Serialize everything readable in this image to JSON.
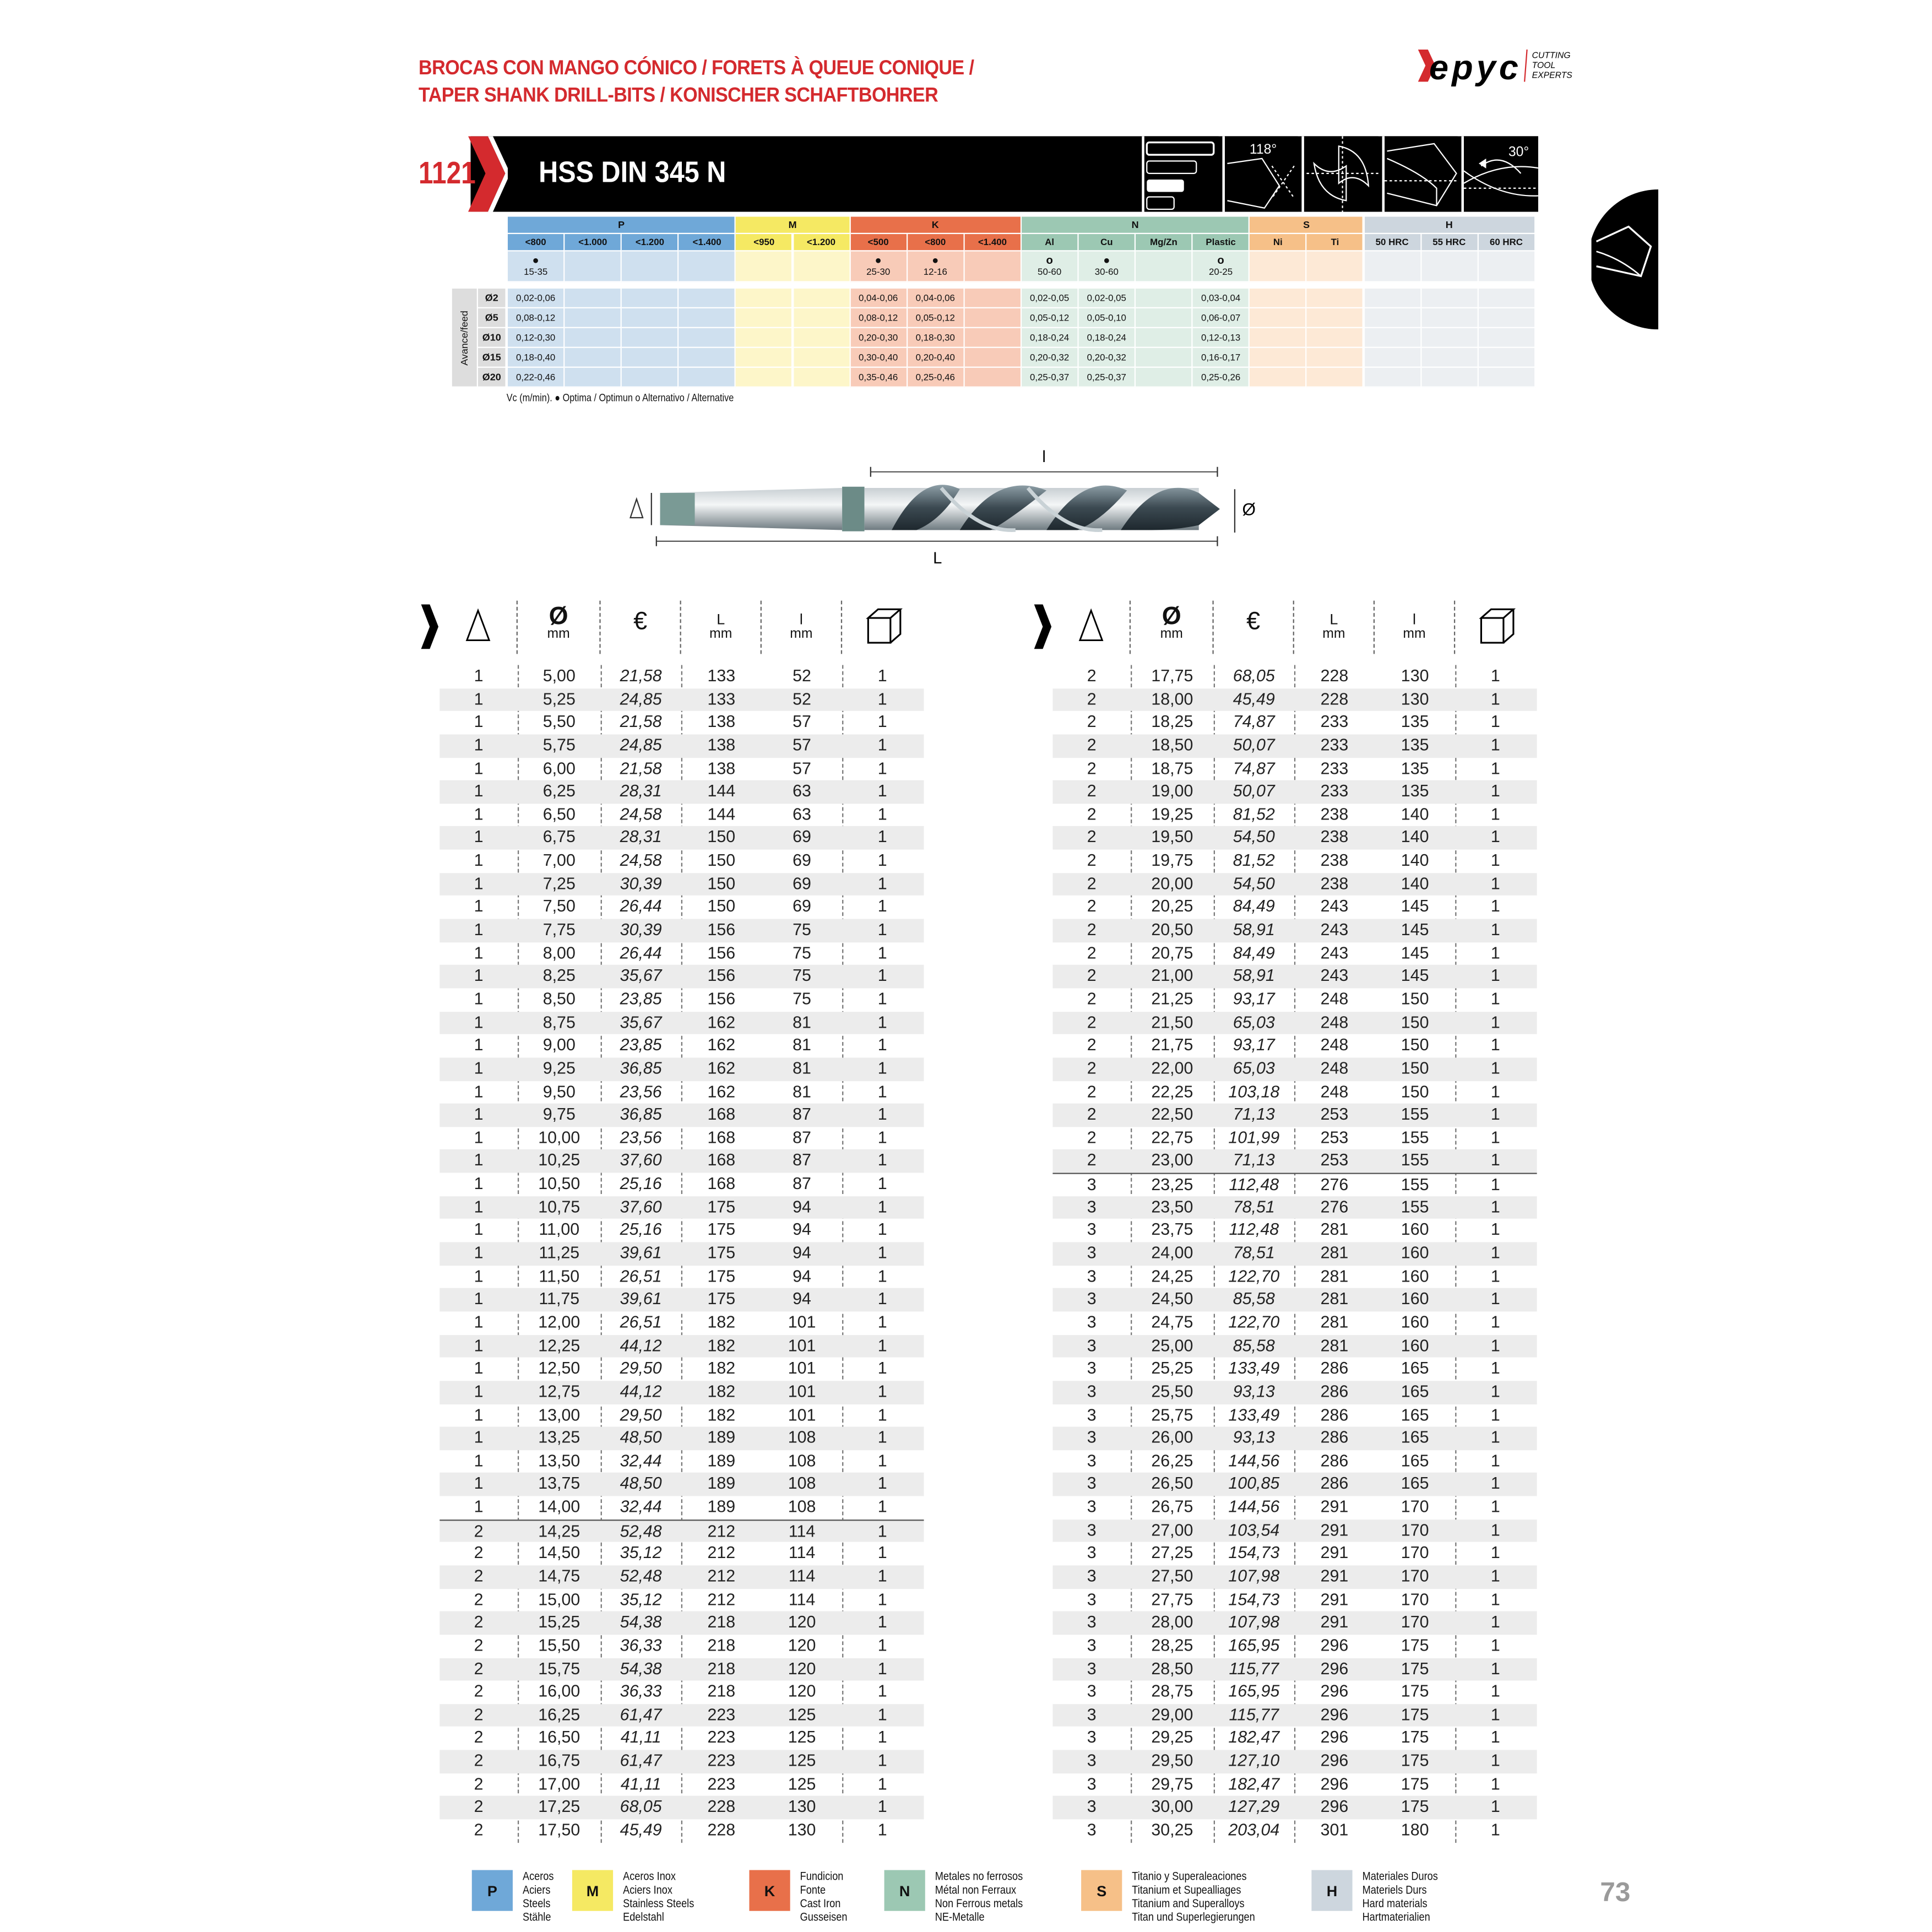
{
  "header": {
    "title_line1": "BROCAS CON MANGO CÓNICO / FORETS À QUEUE CONIQUE /",
    "title_line2": "TAPER SHANK DRILL-BITS / KONISCHER SCHAFTBOHRER",
    "logo_text": "Hepyc",
    "logo_tagline": "CUTTING TOOL EXPERTS",
    "brand_color": "#d42a2e"
  },
  "product": {
    "code": "1121",
    "name": "HSS DIN 345 N",
    "icons": [
      {
        "name": "length-series-icon"
      },
      {
        "name": "point-angle-icon",
        "label": "118°"
      },
      {
        "name": "split-point-icon"
      },
      {
        "name": "cutting-edge-icon"
      },
      {
        "name": "helix-angle-icon",
        "label": "30°"
      }
    ]
  },
  "materials": {
    "feed_label": "Avance/feed",
    "feed_diameters": [
      "Ø2",
      "Ø5",
      "Ø10",
      "Ø15",
      "Ø20"
    ],
    "footnote": "Vc (m/min). ● Optima / Optimun  o Alternativo / Alternative",
    "groups": [
      {
        "code": "P",
        "color": "#6fa8d8",
        "light": "#cfe0ef",
        "columns": [
          {
            "label": "<800",
            "mark": "●",
            "vc": "15-35",
            "feed": [
              "0,02-0,06",
              "0,08-0,12",
              "0,12-0,30",
              "0,18-0,40",
              "0,22-0,46"
            ]
          },
          {
            "label": "<1.000",
            "mark": "",
            "vc": "",
            "feed": [
              "",
              "",
              "",
              "",
              ""
            ]
          },
          {
            "label": "<1.200",
            "mark": "",
            "vc": "",
            "feed": [
              "",
              "",
              "",
              "",
              ""
            ]
          },
          {
            "label": "<1.400",
            "mark": "",
            "vc": "",
            "feed": [
              "",
              "",
              "",
              "",
              ""
            ]
          }
        ]
      },
      {
        "code": "M",
        "color": "#f5e963",
        "light": "#fdf6c9",
        "columns": [
          {
            "label": "<950",
            "mark": "",
            "vc": "",
            "feed": [
              "",
              "",
              "",
              "",
              ""
            ]
          },
          {
            "label": "<1.200",
            "mark": "",
            "vc": "",
            "feed": [
              "",
              "",
              "",
              "",
              ""
            ]
          }
        ]
      },
      {
        "code": "K",
        "color": "#e8704a",
        "light": "#f8cbb8",
        "columns": [
          {
            "label": "<500",
            "mark": "●",
            "vc": "25-30",
            "feed": [
              "0,04-0,06",
              "0,08-0,12",
              "0,20-0,30",
              "0,30-0,40",
              "0,35-0,46"
            ]
          },
          {
            "label": "<800",
            "mark": "●",
            "vc": "12-16",
            "feed": [
              "0,04-0,06",
              "0,05-0,12",
              "0,18-0,30",
              "0,20-0,40",
              "0,25-0,46"
            ]
          },
          {
            "label": "<1.400",
            "mark": "",
            "vc": "",
            "feed": [
              "",
              "",
              "",
              "",
              ""
            ]
          }
        ]
      },
      {
        "code": "N",
        "color": "#9cc8b3",
        "light": "#dfeee6",
        "columns": [
          {
            "label": "Al",
            "mark": "o",
            "vc": "50-60",
            "feed": [
              "0,02-0,05",
              "0,05-0,12",
              "0,18-0,24",
              "0,20-0,32",
              "0,25-0,37"
            ]
          },
          {
            "label": "Cu",
            "mark": "●",
            "vc": "30-60",
            "feed": [
              "0,02-0,05",
              "0,05-0,10",
              "0,18-0,24",
              "0,20-0,32",
              "0,25-0,37"
            ]
          },
          {
            "label": "Mg/Zn",
            "mark": "",
            "vc": "",
            "feed": [
              "",
              "",
              "",
              "",
              ""
            ]
          },
          {
            "label": "Plastic",
            "mark": "o",
            "vc": "20-25",
            "feed": [
              "0,03-0,04",
              "0,06-0,07",
              "0,12-0,13",
              "0,16-0,17",
              "0,25-0,26"
            ]
          }
        ]
      },
      {
        "code": "S",
        "color": "#f6c088",
        "light": "#fde9d6",
        "columns": [
          {
            "label": "Ni",
            "mark": "",
            "vc": "",
            "feed": [
              "",
              "",
              "",
              "",
              ""
            ]
          },
          {
            "label": "Ti",
            "mark": "",
            "vc": "",
            "feed": [
              "",
              "",
              "",
              "",
              ""
            ]
          }
        ]
      },
      {
        "code": "H",
        "color": "#cdd6de",
        "light": "#eceff2",
        "columns": [
          {
            "label": "50 HRC",
            "mark": "",
            "vc": "",
            "feed": [
              "",
              "",
              "",
              "",
              ""
            ]
          },
          {
            "label": "55 HRC",
            "mark": "",
            "vc": "",
            "feed": [
              "",
              "",
              "",
              "",
              ""
            ]
          },
          {
            "label": "60 HRC",
            "mark": "",
            "vc": "",
            "feed": [
              "",
              "",
              "",
              "",
              ""
            ]
          }
        ]
      }
    ]
  },
  "drawing": {
    "l_label": "l",
    "L_label": "L",
    "d_label": "Ø"
  },
  "table_headers": {
    "cone_icon": "morse-taper-icon",
    "diameter": "Ø",
    "diameter_unit": "mm",
    "price": "€",
    "L": "L",
    "L_unit": "mm",
    "l": "l",
    "l_unit": "mm",
    "pack_icon": "package-box-icon"
  },
  "table_left": [
    [
      "1",
      "5,00",
      "21,58",
      "133",
      "52",
      "1"
    ],
    [
      "1",
      "5,25",
      "24,85",
      "133",
      "52",
      "1"
    ],
    [
      "1",
      "5,50",
      "21,58",
      "138",
      "57",
      "1"
    ],
    [
      "1",
      "5,75",
      "24,85",
      "138",
      "57",
      "1"
    ],
    [
      "1",
      "6,00",
      "21,58",
      "138",
      "57",
      "1"
    ],
    [
      "1",
      "6,25",
      "28,31",
      "144",
      "63",
      "1"
    ],
    [
      "1",
      "6,50",
      "24,58",
      "144",
      "63",
      "1"
    ],
    [
      "1",
      "6,75",
      "28,31",
      "150",
      "69",
      "1"
    ],
    [
      "1",
      "7,00",
      "24,58",
      "150",
      "69",
      "1"
    ],
    [
      "1",
      "7,25",
      "30,39",
      "150",
      "69",
      "1"
    ],
    [
      "1",
      "7,50",
      "26,44",
      "150",
      "69",
      "1"
    ],
    [
      "1",
      "7,75",
      "30,39",
      "156",
      "75",
      "1"
    ],
    [
      "1",
      "8,00",
      "26,44",
      "156",
      "75",
      "1"
    ],
    [
      "1",
      "8,25",
      "35,67",
      "156",
      "75",
      "1"
    ],
    [
      "1",
      "8,50",
      "23,85",
      "156",
      "75",
      "1"
    ],
    [
      "1",
      "8,75",
      "35,67",
      "162",
      "81",
      "1"
    ],
    [
      "1",
      "9,00",
      "23,85",
      "162",
      "81",
      "1"
    ],
    [
      "1",
      "9,25",
      "36,85",
      "162",
      "81",
      "1"
    ],
    [
      "1",
      "9,50",
      "23,56",
      "162",
      "81",
      "1"
    ],
    [
      "1",
      "9,75",
      "36,85",
      "168",
      "87",
      "1"
    ],
    [
      "1",
      "10,00",
      "23,56",
      "168",
      "87",
      "1"
    ],
    [
      "1",
      "10,25",
      "37,60",
      "168",
      "87",
      "1"
    ],
    [
      "1",
      "10,50",
      "25,16",
      "168",
      "87",
      "1"
    ],
    [
      "1",
      "10,75",
      "37,60",
      "175",
      "94",
      "1"
    ],
    [
      "1",
      "11,00",
      "25,16",
      "175",
      "94",
      "1"
    ],
    [
      "1",
      "11,25",
      "39,61",
      "175",
      "94",
      "1"
    ],
    [
      "1",
      "11,50",
      "26,51",
      "175",
      "94",
      "1"
    ],
    [
      "1",
      "11,75",
      "39,61",
      "175",
      "94",
      "1"
    ],
    [
      "1",
      "12,00",
      "26,51",
      "182",
      "101",
      "1"
    ],
    [
      "1",
      "12,25",
      "44,12",
      "182",
      "101",
      "1"
    ],
    [
      "1",
      "12,50",
      "29,50",
      "182",
      "101",
      "1"
    ],
    [
      "1",
      "12,75",
      "44,12",
      "182",
      "101",
      "1"
    ],
    [
      "1",
      "13,00",
      "29,50",
      "182",
      "101",
      "1"
    ],
    [
      "1",
      "13,25",
      "48,50",
      "189",
      "108",
      "1"
    ],
    [
      "1",
      "13,50",
      "32,44",
      "189",
      "108",
      "1"
    ],
    [
      "1",
      "13,75",
      "48,50",
      "189",
      "108",
      "1"
    ],
    [
      "1",
      "14,00",
      "32,44",
      "189",
      "108",
      "1"
    ],
    [
      "2",
      "14,25",
      "52,48",
      "212",
      "114",
      "1"
    ],
    [
      "2",
      "14,50",
      "35,12",
      "212",
      "114",
      "1"
    ],
    [
      "2",
      "14,75",
      "52,48",
      "212",
      "114",
      "1"
    ],
    [
      "2",
      "15,00",
      "35,12",
      "212",
      "114",
      "1"
    ],
    [
      "2",
      "15,25",
      "54,38",
      "218",
      "120",
      "1"
    ],
    [
      "2",
      "15,50",
      "36,33",
      "218",
      "120",
      "1"
    ],
    [
      "2",
      "15,75",
      "54,38",
      "218",
      "120",
      "1"
    ],
    [
      "2",
      "16,00",
      "36,33",
      "218",
      "120",
      "1"
    ],
    [
      "2",
      "16,25",
      "61,47",
      "223",
      "125",
      "1"
    ],
    [
      "2",
      "16,50",
      "41,11",
      "223",
      "125",
      "1"
    ],
    [
      "2",
      "16,75",
      "61,47",
      "223",
      "125",
      "1"
    ],
    [
      "2",
      "17,00",
      "41,11",
      "223",
      "125",
      "1"
    ],
    [
      "2",
      "17,25",
      "68,05",
      "228",
      "130",
      "1"
    ],
    [
      "2",
      "17,50",
      "45,49",
      "228",
      "130",
      "1"
    ]
  ],
  "table_right": [
    [
      "2",
      "17,75",
      "68,05",
      "228",
      "130",
      "1"
    ],
    [
      "2",
      "18,00",
      "45,49",
      "228",
      "130",
      "1"
    ],
    [
      "2",
      "18,25",
      "74,87",
      "233",
      "135",
      "1"
    ],
    [
      "2",
      "18,50",
      "50,07",
      "233",
      "135",
      "1"
    ],
    [
      "2",
      "18,75",
      "74,87",
      "233",
      "135",
      "1"
    ],
    [
      "2",
      "19,00",
      "50,07",
      "233",
      "135",
      "1"
    ],
    [
      "2",
      "19,25",
      "81,52",
      "238",
      "140",
      "1"
    ],
    [
      "2",
      "19,50",
      "54,50",
      "238",
      "140",
      "1"
    ],
    [
      "2",
      "19,75",
      "81,52",
      "238",
      "140",
      "1"
    ],
    [
      "2",
      "20,00",
      "54,50",
      "238",
      "140",
      "1"
    ],
    [
      "2",
      "20,25",
      "84,49",
      "243",
      "145",
      "1"
    ],
    [
      "2",
      "20,50",
      "58,91",
      "243",
      "145",
      "1"
    ],
    [
      "2",
      "20,75",
      "84,49",
      "243",
      "145",
      "1"
    ],
    [
      "2",
      "21,00",
      "58,91",
      "243",
      "145",
      "1"
    ],
    [
      "2",
      "21,25",
      "93,17",
      "248",
      "150",
      "1"
    ],
    [
      "2",
      "21,50",
      "65,03",
      "248",
      "150",
      "1"
    ],
    [
      "2",
      "21,75",
      "93,17",
      "248",
      "150",
      "1"
    ],
    [
      "2",
      "22,00",
      "65,03",
      "248",
      "150",
      "1"
    ],
    [
      "2",
      "22,25",
      "103,18",
      "248",
      "150",
      "1"
    ],
    [
      "2",
      "22,50",
      "71,13",
      "253",
      "155",
      "1"
    ],
    [
      "2",
      "22,75",
      "101,99",
      "253",
      "155",
      "1"
    ],
    [
      "2",
      "23,00",
      "71,13",
      "253",
      "155",
      "1"
    ],
    [
      "3",
      "23,25",
      "112,48",
      "276",
      "155",
      "1"
    ],
    [
      "3",
      "23,50",
      "78,51",
      "276",
      "155",
      "1"
    ],
    [
      "3",
      "23,75",
      "112,48",
      "281",
      "160",
      "1"
    ],
    [
      "3",
      "24,00",
      "78,51",
      "281",
      "160",
      "1"
    ],
    [
      "3",
      "24,25",
      "122,70",
      "281",
      "160",
      "1"
    ],
    [
      "3",
      "24,50",
      "85,58",
      "281",
      "160",
      "1"
    ],
    [
      "3",
      "24,75",
      "122,70",
      "281",
      "160",
      "1"
    ],
    [
      "3",
      "25,00",
      "85,58",
      "281",
      "160",
      "1"
    ],
    [
      "3",
      "25,25",
      "133,49",
      "286",
      "165",
      "1"
    ],
    [
      "3",
      "25,50",
      "93,13",
      "286",
      "165",
      "1"
    ],
    [
      "3",
      "25,75",
      "133,49",
      "286",
      "165",
      "1"
    ],
    [
      "3",
      "26,00",
      "93,13",
      "286",
      "165",
      "1"
    ],
    [
      "3",
      "26,25",
      "144,56",
      "286",
      "165",
      "1"
    ],
    [
      "3",
      "26,50",
      "100,85",
      "286",
      "165",
      "1"
    ],
    [
      "3",
      "26,75",
      "144,56",
      "291",
      "170",
      "1"
    ],
    [
      "3",
      "27,00",
      "103,54",
      "291",
      "170",
      "1"
    ],
    [
      "3",
      "27,25",
      "154,73",
      "291",
      "170",
      "1"
    ],
    [
      "3",
      "27,50",
      "107,98",
      "291",
      "170",
      "1"
    ],
    [
      "3",
      "27,75",
      "154,73",
      "291",
      "170",
      "1"
    ],
    [
      "3",
      "28,00",
      "107,98",
      "291",
      "170",
      "1"
    ],
    [
      "3",
      "28,25",
      "165,95",
      "296",
      "175",
      "1"
    ],
    [
      "3",
      "28,50",
      "115,77",
      "296",
      "175",
      "1"
    ],
    [
      "3",
      "28,75",
      "165,95",
      "296",
      "175",
      "1"
    ],
    [
      "3",
      "29,00",
      "115,77",
      "296",
      "175",
      "1"
    ],
    [
      "3",
      "29,25",
      "182,47",
      "296",
      "175",
      "1"
    ],
    [
      "3",
      "29,50",
      "127,10",
      "296",
      "175",
      "1"
    ],
    [
      "3",
      "29,75",
      "182,47",
      "296",
      "175",
      "1"
    ],
    [
      "3",
      "30,00",
      "127,29",
      "296",
      "175",
      "1"
    ],
    [
      "3",
      "30,25",
      "203,04",
      "301",
      "180",
      "1"
    ]
  ],
  "legend": [
    {
      "code": "P",
      "color": "#6fa8d8",
      "lines": [
        "Aceros",
        "Aciers",
        "Steels",
        "Stähle"
      ]
    },
    {
      "code": "M",
      "color": "#f5e963",
      "lines": [
        "Aceros Inox",
        "Aciers Inox",
        "Stainless Steels",
        "Edelstahl"
      ]
    },
    {
      "code": "K",
      "color": "#e8704a",
      "lines": [
        "Fundicion",
        "Fonte",
        "Cast Iron",
        "Gusseisen"
      ]
    },
    {
      "code": "N",
      "color": "#9cc8b3",
      "lines": [
        "Metales no ferrosos",
        "Métal non Ferraux",
        "Non Ferrous metals",
        "NE-Metalle"
      ]
    },
    {
      "code": "S",
      "color": "#f6c088",
      "lines": [
        "Titanio y Superaleaciones",
        "Titanium et Supealliages",
        "Titanium and Superalloys",
        "Titan und Superlegierungen"
      ]
    },
    {
      "code": "H",
      "color": "#cdd6de",
      "lines": [
        "Materiales Duros",
        "Materiels Durs",
        "Hard materials",
        "Hartmaterialien"
      ]
    }
  ],
  "page_number": "73"
}
